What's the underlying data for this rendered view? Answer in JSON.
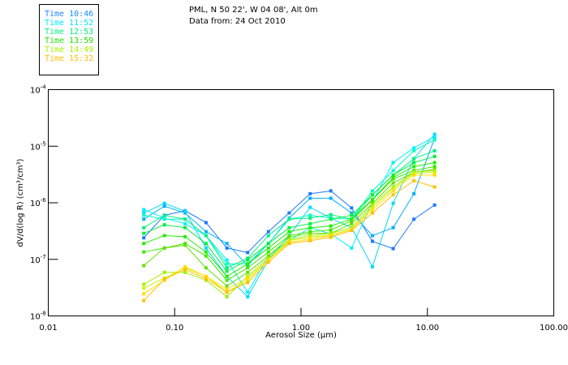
{
  "chart_data": {
    "type": "line",
    "title_lines": [
      "PML, N 50 22', W 04 08', Alt 0m",
      "Data from: 24 Oct 2010"
    ],
    "xlabel": "Aerosol Size (µm)",
    "ylabel": "dV/d(log R) (cm³/cm³)",
    "xscale": "log",
    "yscale": "log",
    "xlim": [
      0.01,
      100
    ],
    "ylim_log10": [
      -8,
      -4
    ],
    "x_tick_labels": [
      "0.01",
      "0.10",
      "1.00",
      "10.00",
      "100.00"
    ],
    "y_tick_labels": [
      {
        "base": "10",
        "exp": "-4",
        "log10": -4
      },
      {
        "base": "10",
        "exp": "-5",
        "log10": -5
      },
      {
        "base": "10",
        "exp": "-6",
        "log10": -6
      },
      {
        "base": "10",
        "exp": "-7",
        "log10": -7
      },
      {
        "base": "10",
        "exp": "-8",
        "log10": -8
      }
    ],
    "legend": {
      "placement": "top-left, outside plot",
      "entries": [
        {
          "label": "Time 10:46",
          "color": "#1e88ff"
        },
        {
          "label": "Time 11:52",
          "color": "#00e8ff"
        },
        {
          "label": "Time 12:53",
          "color": "#00f080"
        },
        {
          "label": "Time 13:59",
          "color": "#20e000"
        },
        {
          "label": "Time 14:49",
          "color": "#a8f000"
        },
        {
          "label": "Time 15:32",
          "color": "#ffc000"
        }
      ]
    },
    "x": [
      0.057,
      0.083,
      0.121,
      0.177,
      0.259,
      0.378,
      0.552,
      0.806,
      1.18,
      1.72,
      2.51,
      3.67,
      5.36,
      7.82,
      11.4
    ],
    "series_values_are": "log10 of dV/d(log R)",
    "series": [
      {
        "color": "#1e78ff",
        "values": [
          -6.62,
          -6.22,
          -6.14,
          -6.35,
          -6.8,
          -6.88,
          -6.51,
          -6.18,
          -5.84,
          -5.79,
          -6.09,
          -6.68,
          -6.81,
          -6.29,
          -6.04
        ]
      },
      {
        "color": "#00b0ff",
        "values": [
          -6.29,
          -6.06,
          -6.18,
          -6.51,
          -6.72,
          -7.11,
          -6.72,
          -6.27,
          -5.92,
          -5.92,
          -6.18,
          -6.58,
          -6.44,
          -5.84,
          -4.86
        ]
      },
      {
        "color": "#00d8ff",
        "values": [
          -6.18,
          -6.01,
          -6.15,
          -6.8,
          -7.3,
          -7.66,
          -7.01,
          -6.58,
          -6.08,
          -6.27,
          -6.44,
          -7.13,
          -6.01,
          -5.22,
          -4.79
        ]
      },
      {
        "color": "#00f0ff",
        "values": [
          -6.12,
          -6.27,
          -6.37,
          -6.58,
          -7.01,
          -7.58,
          -6.94,
          -6.67,
          -6.44,
          -6.55,
          -6.8,
          -5.98,
          -5.29,
          -5.03,
          -4.83
        ]
      },
      {
        "color": "#00ffc0",
        "values": [
          -6.22,
          -6.29,
          -6.29,
          -6.58,
          -7.08,
          -7.08,
          -6.72,
          -6.29,
          -6.22,
          -6.27,
          -6.29,
          -5.79,
          -5.43,
          -5.08,
          -4.89
        ]
      },
      {
        "color": "#00f080",
        "values": [
          -6.44,
          -6.22,
          -6.29,
          -6.58,
          -7.15,
          -6.98,
          -6.58,
          -6.29,
          -6.27,
          -6.21,
          -6.29,
          -5.86,
          -5.51,
          -5.22,
          -5.08
        ]
      },
      {
        "color": "#00f040",
        "values": [
          -6.54,
          -6.39,
          -6.44,
          -6.72,
          -7.21,
          -7.01,
          -6.72,
          -6.44,
          -6.37,
          -6.29,
          -6.22,
          -5.86,
          -5.51,
          -5.29,
          -5.18
        ]
      },
      {
        "color": "#20f000",
        "values": [
          -6.72,
          -6.58,
          -6.6,
          -6.87,
          -7.3,
          -7.08,
          -6.8,
          -6.51,
          -6.44,
          -6.41,
          -6.29,
          -5.94,
          -5.55,
          -5.36,
          -5.29
        ]
      },
      {
        "color": "#40e800",
        "values": [
          -6.87,
          -6.8,
          -6.72,
          -6.94,
          -7.37,
          -7.15,
          -6.87,
          -6.58,
          -6.51,
          -6.48,
          -6.32,
          -5.95,
          -5.58,
          -5.43,
          -5.36
        ]
      },
      {
        "color": "#60e000",
        "values": [
          -7.11,
          -6.8,
          -6.75,
          -7.15,
          -7.47,
          -7.23,
          -6.94,
          -6.61,
          -6.54,
          -6.54,
          -6.37,
          -6.01,
          -5.65,
          -5.46,
          -5.41
        ]
      },
      {
        "color": "#a0f000",
        "values": [
          -7.44,
          -7.23,
          -7.23,
          -7.37,
          -7.66,
          -7.3,
          -6.98,
          -6.65,
          -6.58,
          -6.54,
          -6.44,
          -6.04,
          -5.72,
          -5.46,
          -5.43
        ]
      },
      {
        "color": "#d0f000",
        "values": [
          -7.51,
          -7.33,
          -7.15,
          -7.3,
          -7.58,
          -7.37,
          -7.01,
          -6.67,
          -6.61,
          -6.57,
          -6.47,
          -6.08,
          -5.75,
          -5.48,
          -5.46
        ]
      },
      {
        "color": "#ffe000",
        "values": [
          -7.61,
          -7.37,
          -7.13,
          -7.3,
          -7.53,
          -7.33,
          -7.01,
          -6.7,
          -6.64,
          -6.58,
          -6.47,
          -6.12,
          -5.79,
          -5.51,
          -5.51
        ]
      },
      {
        "color": "#ffc000",
        "values": [
          -7.73,
          -7.35,
          -7.18,
          -7.34,
          -7.58,
          -7.41,
          -7.05,
          -6.72,
          -6.67,
          -6.61,
          -6.49,
          -6.18,
          -5.86,
          -5.61,
          -5.72
        ]
      }
    ]
  }
}
